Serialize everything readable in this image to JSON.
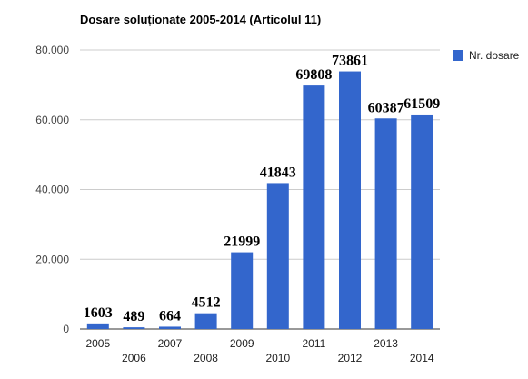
{
  "chart_data": {
    "type": "bar",
    "title": "Dosare soluționate 2005-2014 (Articolul 11)",
    "categories": [
      "2005",
      "2006",
      "2007",
      "2008",
      "2009",
      "2010",
      "2011",
      "2012",
      "2013",
      "2014"
    ],
    "series": [
      {
        "name": "Nr. dosare",
        "values": [
          1603,
          489,
          664,
          4512,
          21999,
          41843,
          69808,
          73861,
          60387,
          61509
        ],
        "color": "#3366cc"
      }
    ],
    "data_labels": [
      "1603",
      "489",
      "664",
      "4512",
      "21999",
      "41843",
      "69808",
      "73861",
      "60387",
      "61509"
    ],
    "yticks": [
      0,
      20000,
      40000,
      60000,
      80000
    ],
    "ytick_labels": [
      "0",
      "20.000",
      "40.000",
      "60.000",
      "80.000"
    ],
    "ylim": [
      0,
      80000
    ],
    "xlabel": "",
    "ylabel": "",
    "grid": true,
    "legend_position": "right"
  }
}
